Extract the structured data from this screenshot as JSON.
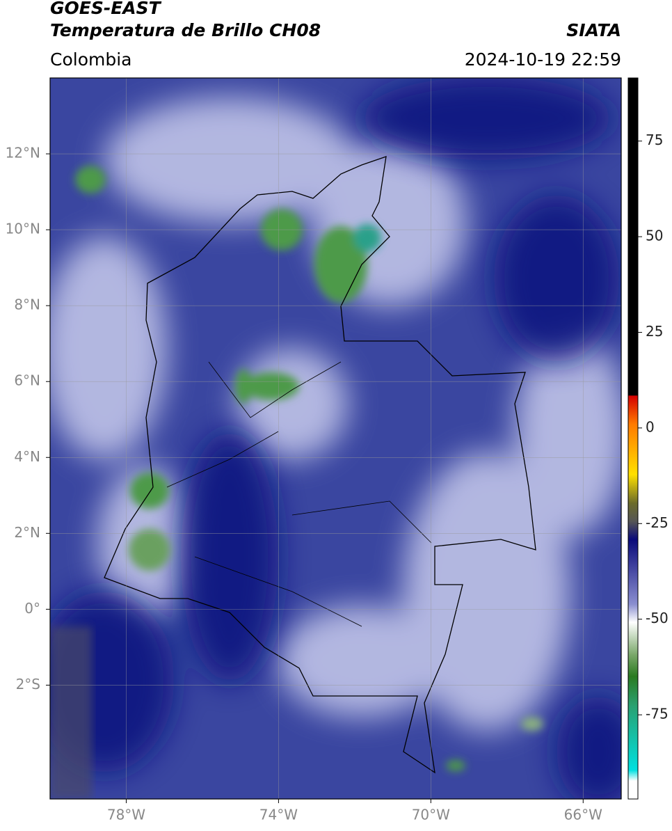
{
  "header": {
    "satellite": "GOES-EAST",
    "product": "Temperatura de Brillo CH08",
    "region": "Colombia",
    "source": "SIATA",
    "datetime": "2024-10-19 22:59"
  },
  "map": {
    "xlim": [
      -80,
      -65
    ],
    "ylim": [
      -5,
      14
    ],
    "xticks": [
      {
        "value": -78,
        "label": "78°W"
      },
      {
        "value": -74,
        "label": "74°W"
      },
      {
        "value": -70,
        "label": "70°W"
      },
      {
        "value": -66,
        "label": "66°W"
      }
    ],
    "yticks": [
      {
        "value": 12,
        "label": "12°N"
      },
      {
        "value": 10,
        "label": "10°N"
      },
      {
        "value": 8,
        "label": "8°N"
      },
      {
        "value": 6,
        "label": "6°N"
      },
      {
        "value": 4,
        "label": "4°N"
      },
      {
        "value": 2,
        "label": "2°N"
      },
      {
        "value": 0,
        "label": "0°"
      },
      {
        "value": -2,
        "label": "2°S"
      }
    ]
  },
  "colorbar": {
    "lim": [
      -97,
      91.5
    ],
    "ticks": [
      75,
      50,
      25,
      0,
      -25,
      -50,
      -75
    ]
  }
}
